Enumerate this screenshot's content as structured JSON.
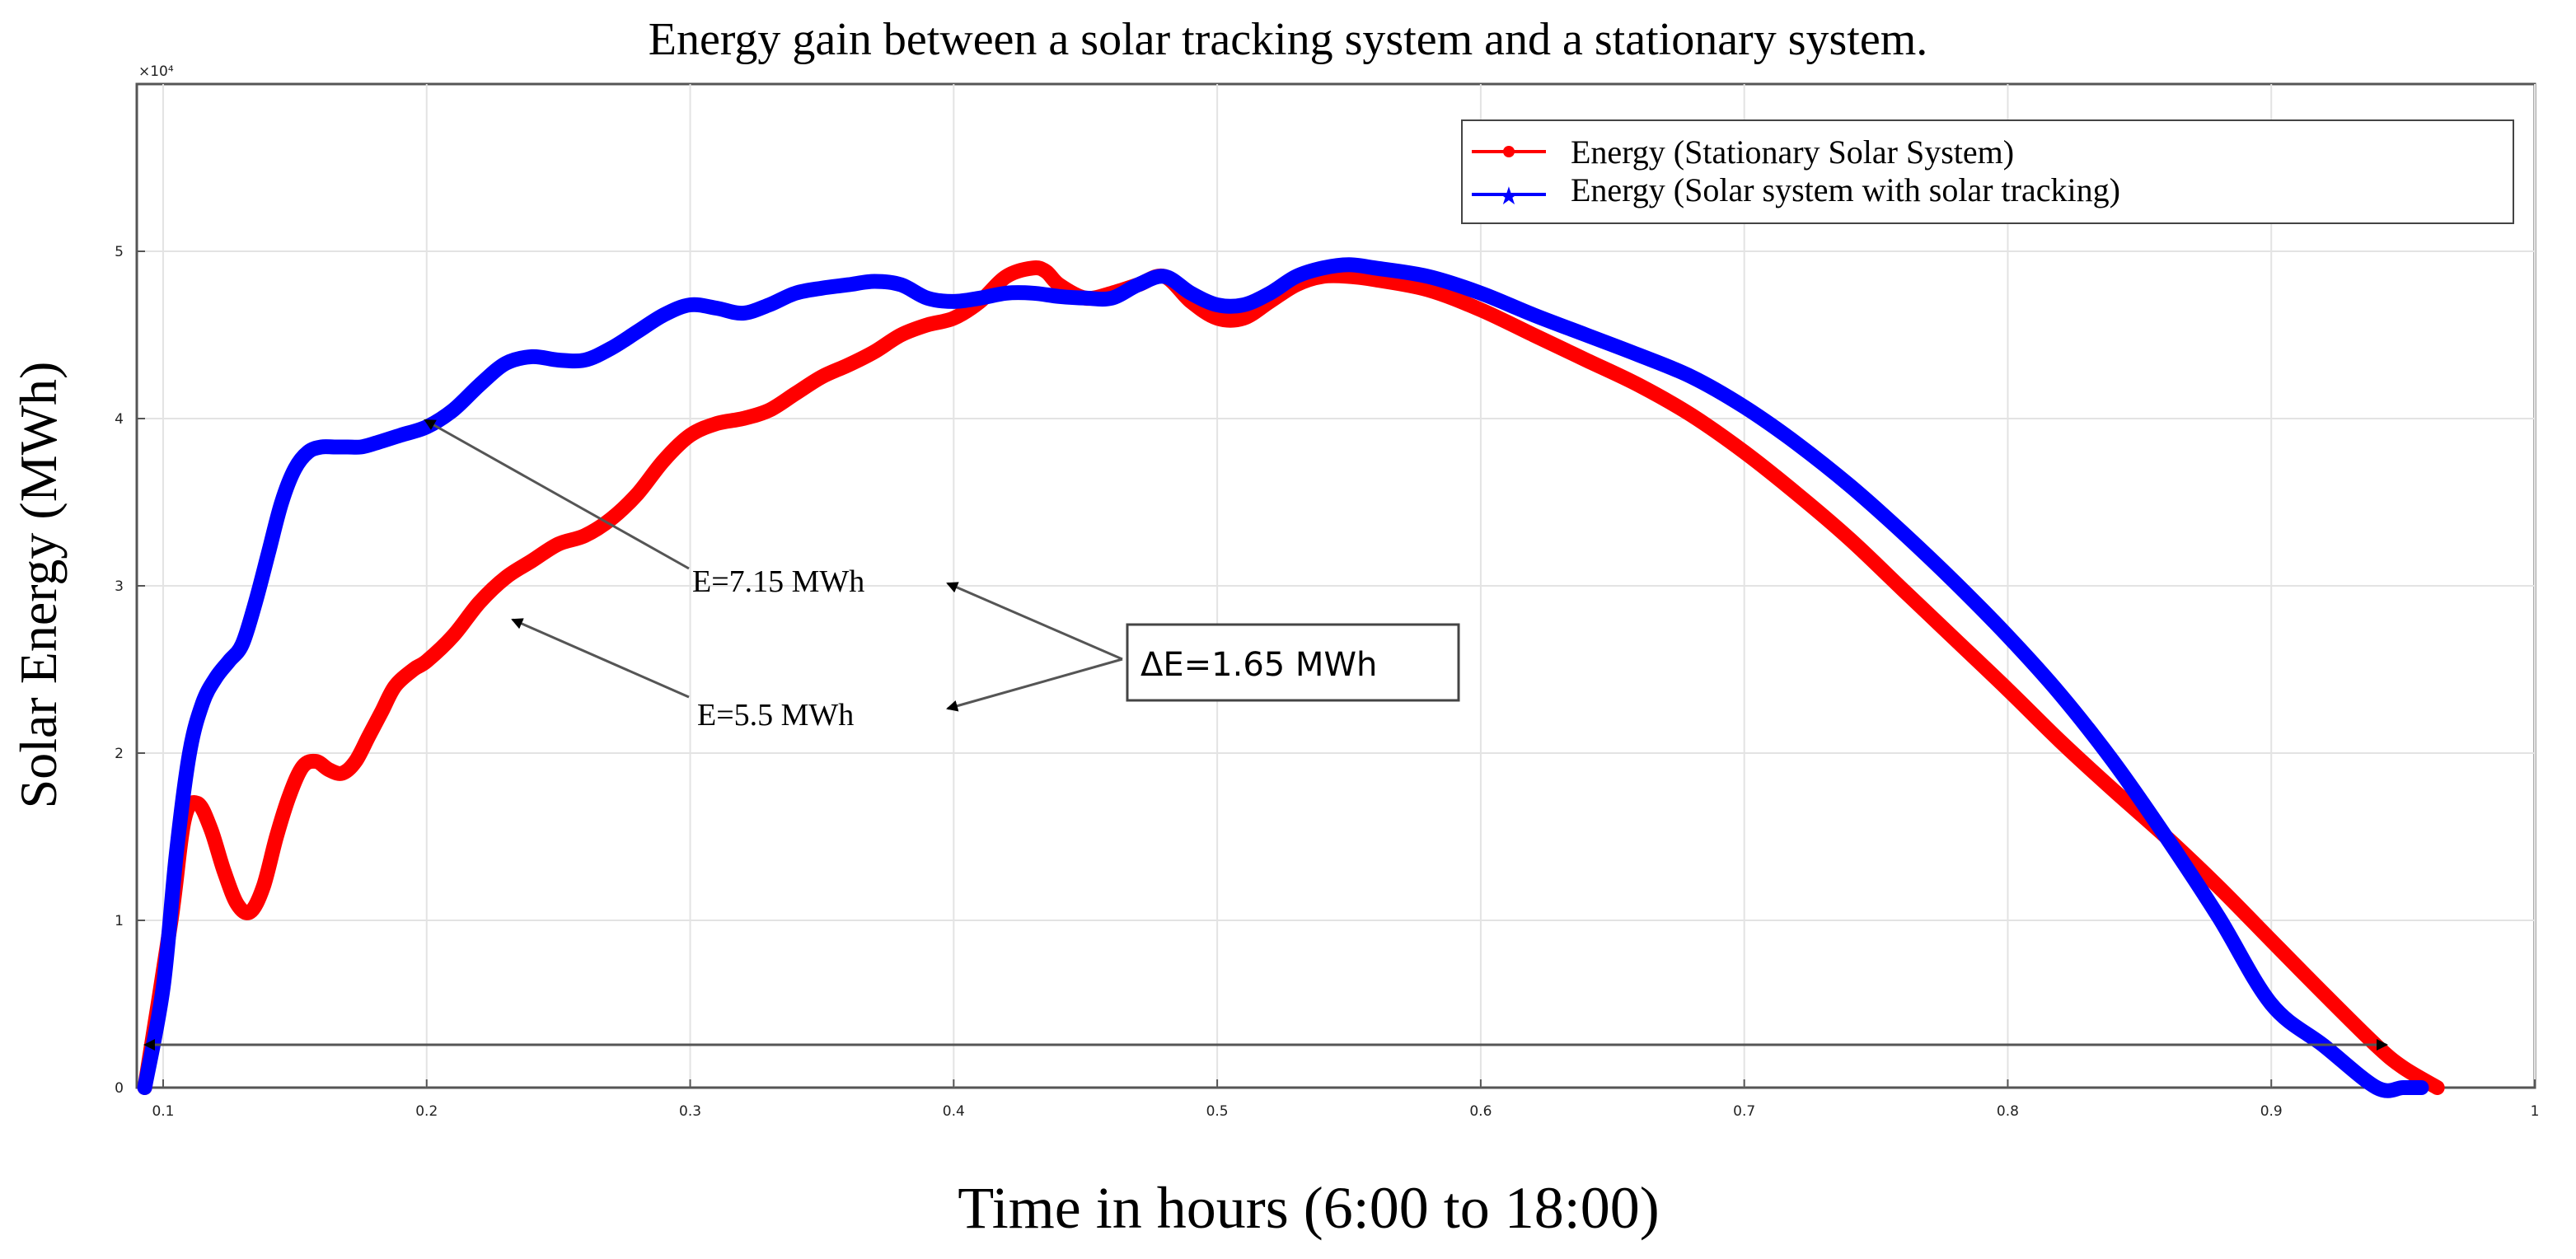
{
  "chart_data": {
    "type": "line",
    "title": "Energy gain between a solar tracking system and a stationary system.",
    "xlabel": "Time in hours (6:00 to 18:00)",
    "ylabel": "Solar Energy (MWh)",
    "y_exponent_label": "×10⁴",
    "xlim": [
      0.09,
      1.0
    ],
    "ylim": [
      0,
      6
    ],
    "x_ticks": [
      0.1,
      0.2,
      0.3,
      0.4,
      0.5,
      0.6,
      0.7,
      0.8,
      0.9,
      1.0
    ],
    "x_tick_labels": [
      "0.1",
      "0.2",
      "0.3",
      "0.4",
      "0.5",
      "0.6",
      "0.7",
      "0.8",
      "0.9",
      "1"
    ],
    "y_ticks": [
      0,
      1,
      2,
      3,
      4,
      5
    ],
    "y_tick_labels": [
      "0",
      "1",
      "2",
      "3",
      "4",
      "5"
    ],
    "grid": true,
    "legend_position": "top-right",
    "series": [
      {
        "name": "Energy (Stationary Solar System)",
        "color": "#ff0000",
        "x": [
          0.093,
          0.103,
          0.108,
          0.113,
          0.118,
          0.123,
          0.128,
          0.133,
          0.138,
          0.143,
          0.148,
          0.153,
          0.158,
          0.163,
          0.168,
          0.173,
          0.178,
          0.183,
          0.188,
          0.195,
          0.2,
          0.21,
          0.22,
          0.23,
          0.24,
          0.25,
          0.26,
          0.27,
          0.28,
          0.29,
          0.3,
          0.31,
          0.32,
          0.33,
          0.34,
          0.35,
          0.36,
          0.37,
          0.38,
          0.39,
          0.4,
          0.41,
          0.42,
          0.43,
          0.435,
          0.44,
          0.45,
          0.46,
          0.47,
          0.48,
          0.49,
          0.5,
          0.51,
          0.52,
          0.53,
          0.54,
          0.55,
          0.56,
          0.58,
          0.6,
          0.62,
          0.64,
          0.66,
          0.68,
          0.7,
          0.72,
          0.74,
          0.76,
          0.78,
          0.8,
          0.82,
          0.84,
          0.86,
          0.88,
          0.9,
          0.92,
          0.94,
          0.95,
          0.963
        ],
        "values": [
          0.0,
          1.0,
          1.6,
          1.7,
          1.55,
          1.3,
          1.1,
          1.05,
          1.2,
          1.5,
          1.75,
          1.92,
          1.95,
          1.9,
          1.88,
          1.95,
          2.1,
          2.25,
          2.4,
          2.5,
          2.55,
          2.7,
          2.9,
          3.05,
          3.15,
          3.25,
          3.3,
          3.4,
          3.55,
          3.75,
          3.9,
          3.97,
          4.0,
          4.05,
          4.15,
          4.25,
          4.32,
          4.4,
          4.5,
          4.56,
          4.6,
          4.7,
          4.85,
          4.9,
          4.88,
          4.8,
          4.72,
          4.75,
          4.8,
          4.85,
          4.7,
          4.6,
          4.6,
          4.7,
          4.8,
          4.85,
          4.85,
          4.83,
          4.77,
          4.65,
          4.5,
          4.35,
          4.2,
          4.02,
          3.8,
          3.55,
          3.28,
          2.98,
          2.68,
          2.38,
          2.07,
          1.78,
          1.5,
          1.2,
          0.88,
          0.56,
          0.25,
          0.12,
          0.0
        ]
      },
      {
        "name": "Energy (Solar system with solar tracking)",
        "color": "#0000ff",
        "x": [
          0.093,
          0.1,
          0.105,
          0.11,
          0.115,
          0.12,
          0.125,
          0.13,
          0.135,
          0.14,
          0.145,
          0.15,
          0.155,
          0.16,
          0.165,
          0.17,
          0.175,
          0.18,
          0.19,
          0.2,
          0.21,
          0.22,
          0.23,
          0.24,
          0.25,
          0.26,
          0.27,
          0.28,
          0.29,
          0.3,
          0.31,
          0.32,
          0.33,
          0.34,
          0.35,
          0.36,
          0.37,
          0.38,
          0.39,
          0.4,
          0.41,
          0.42,
          0.43,
          0.44,
          0.45,
          0.46,
          0.47,
          0.48,
          0.49,
          0.5,
          0.51,
          0.52,
          0.53,
          0.54,
          0.55,
          0.56,
          0.58,
          0.6,
          0.62,
          0.64,
          0.66,
          0.68,
          0.7,
          0.72,
          0.74,
          0.76,
          0.78,
          0.8,
          0.82,
          0.84,
          0.86,
          0.88,
          0.9,
          0.92,
          0.94,
          0.95,
          0.957
        ],
        "values": [
          0.0,
          0.6,
          1.4,
          2.0,
          2.3,
          2.45,
          2.55,
          2.65,
          2.9,
          3.2,
          3.5,
          3.7,
          3.8,
          3.83,
          3.83,
          3.83,
          3.83,
          3.85,
          3.9,
          3.95,
          4.05,
          4.2,
          4.33,
          4.37,
          4.35,
          4.35,
          4.42,
          4.52,
          4.62,
          4.68,
          4.66,
          4.63,
          4.68,
          4.75,
          4.78,
          4.8,
          4.82,
          4.8,
          4.72,
          4.7,
          4.72,
          4.75,
          4.75,
          4.73,
          4.72,
          4.72,
          4.8,
          4.85,
          4.75,
          4.68,
          4.68,
          4.75,
          4.85,
          4.9,
          4.92,
          4.9,
          4.85,
          4.75,
          4.62,
          4.5,
          4.38,
          4.25,
          4.07,
          3.85,
          3.6,
          3.32,
          3.02,
          2.7,
          2.35,
          1.95,
          1.5,
          1.02,
          0.5,
          0.25,
          0.0,
          0.0,
          0.0
        ]
      }
    ],
    "annotations": [
      {
        "text": "E=7.15 MWh",
        "kind": "arrow-label"
      },
      {
        "text": "E=5.5 MWh",
        "kind": "arrow-label"
      },
      {
        "text": "ΔE=1.65 MWh",
        "kind": "boxed-label"
      }
    ]
  }
}
